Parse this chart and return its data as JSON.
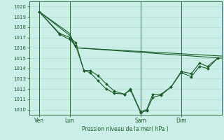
{
  "bg_color": "#cceee8",
  "grid_color": "#aaddcc",
  "line_color": "#1a5e2a",
  "xlabel": "Pression niveau de la mer( hPa )",
  "ylim": [
    1009.5,
    1020.5
  ],
  "yticks": [
    1010,
    1011,
    1012,
    1013,
    1014,
    1015,
    1016,
    1017,
    1018,
    1019,
    1020
  ],
  "xlim": [
    0.0,
    9.5
  ],
  "xtick_labels": [
    "Ven",
    "Lun",
    "Sam",
    "Dim"
  ],
  "xtick_positions": [
    0.5,
    2.0,
    5.5,
    7.5
  ],
  "vlines_x": [
    0.5,
    2.0,
    5.5,
    7.5
  ],
  "series": [
    {
      "x": [
        0.5,
        2.0,
        2.3,
        9.5
      ],
      "y": [
        1019.5,
        1017.4,
        1016.0,
        1015.0
      ]
    },
    {
      "x": [
        0.5,
        2.0,
        2.3,
        9.5
      ],
      "y": [
        1019.5,
        1017.2,
        1016.0,
        1015.2
      ]
    },
    {
      "x": [
        0.5,
        1.5,
        2.0,
        2.3,
        2.7,
        3.0,
        3.4,
        3.8,
        4.2,
        4.7,
        5.0,
        5.5,
        5.8,
        6.1,
        6.5,
        7.0,
        7.5,
        8.0,
        8.4,
        8.8,
        9.3
      ],
      "y": [
        1019.5,
        1017.4,
        1017.0,
        1016.5,
        1013.8,
        1013.8,
        1013.3,
        1012.5,
        1011.8,
        1011.5,
        1012.0,
        1009.8,
        1010.0,
        1011.5,
        1011.5,
        1012.2,
        1013.7,
        1013.5,
        1014.5,
        1014.2,
        1015.0
      ]
    },
    {
      "x": [
        0.5,
        1.5,
        2.0,
        2.3,
        2.7,
        3.0,
        3.4,
        3.8,
        4.2,
        4.7,
        5.0,
        5.5,
        5.8,
        6.1,
        6.5,
        7.0,
        7.5,
        8.0,
        8.4,
        8.8,
        9.3
      ],
      "y": [
        1019.5,
        1017.3,
        1016.8,
        1016.2,
        1013.8,
        1013.6,
        1012.8,
        1012.0,
        1011.6,
        1011.5,
        1011.9,
        1009.7,
        1009.9,
        1011.2,
        1011.4,
        1012.2,
        1013.6,
        1013.2,
        1014.2,
        1014.0,
        1015.0
      ]
    }
  ]
}
